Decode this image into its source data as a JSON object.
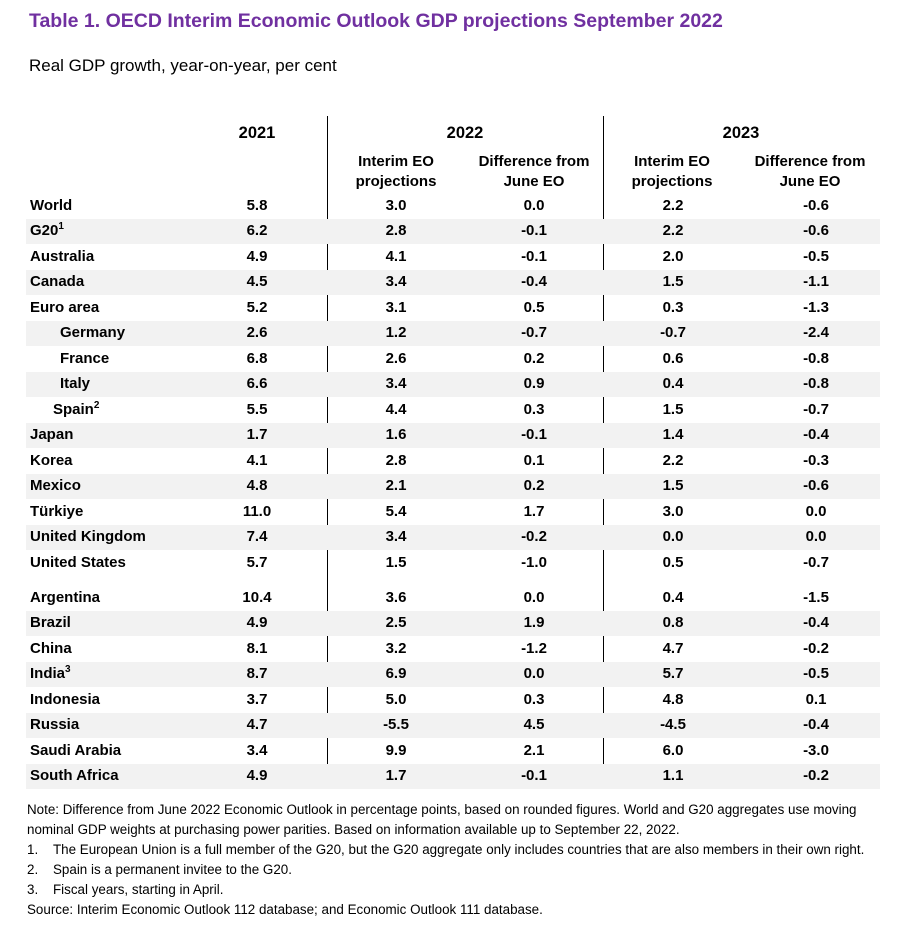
{
  "title": "Table 1. OECD Interim Economic Outlook GDP projections September 2022",
  "subtitle": "Real GDP growth, year-on-year, per cent",
  "header": {
    "y2021": "2021",
    "y2022": "2022",
    "y2023": "2023",
    "interim_line1": "Interim EO",
    "interim_line2": "projections",
    "diff_line1": "Difference from",
    "diff_line2": "June EO"
  },
  "rows": [
    {
      "name": "World",
      "sup": "",
      "v": [
        "5.8",
        "3.0",
        "0.0",
        "2.2",
        "-0.6"
      ]
    },
    {
      "name": "G20",
      "sup": "1",
      "v": [
        "6.2",
        "2.8",
        "-0.1",
        "2.2",
        "-0.6"
      ]
    },
    {
      "name": "Australia",
      "sup": "",
      "v": [
        "4.9",
        "4.1",
        "-0.1",
        "2.0",
        "-0.5"
      ]
    },
    {
      "name": "Canada",
      "sup": "",
      "v": [
        "4.5",
        "3.4",
        "-0.4",
        "1.5",
        "-1.1"
      ]
    },
    {
      "name": "Euro area",
      "sup": "",
      "v": [
        "5.2",
        "3.1",
        "0.5",
        "0.3",
        "-1.3"
      ]
    },
    {
      "name": "Germany",
      "sup": "",
      "v": [
        "2.6",
        "1.2",
        "-0.7",
        "-0.7",
        "-2.4"
      ]
    },
    {
      "name": "France",
      "sup": "",
      "v": [
        "6.8",
        "2.6",
        "0.2",
        "0.6",
        "-0.8"
      ]
    },
    {
      "name": "Italy",
      "sup": "",
      "v": [
        "6.6",
        "3.4",
        "0.9",
        "0.4",
        "-0.8"
      ]
    },
    {
      "name": "Spain",
      "sup": "2",
      "v": [
        "5.5",
        "4.4",
        "0.3",
        "1.5",
        "-0.7"
      ]
    },
    {
      "name": "Japan",
      "sup": "",
      "v": [
        "1.7",
        "1.6",
        "-0.1",
        "1.4",
        "-0.4"
      ]
    },
    {
      "name": "Korea",
      "sup": "",
      "v": [
        "4.1",
        "2.8",
        "0.1",
        "2.2",
        "-0.3"
      ]
    },
    {
      "name": "Mexico",
      "sup": "",
      "v": [
        "4.8",
        "2.1",
        "0.2",
        "1.5",
        "-0.6"
      ]
    },
    {
      "name": "Türkiye",
      "sup": "",
      "v": [
        "11.0",
        "5.4",
        "1.7",
        "3.0",
        "0.0"
      ]
    },
    {
      "name": "United Kingdom",
      "sup": "",
      "v": [
        "7.4",
        "3.4",
        "-0.2",
        "0.0",
        "0.0"
      ]
    },
    {
      "name": "United States",
      "sup": "",
      "v": [
        "5.7",
        "1.5",
        "-1.0",
        "0.5",
        "-0.7"
      ]
    },
    {
      "name": "Argentina",
      "sup": "",
      "v": [
        "10.4",
        "3.6",
        "0.0",
        "0.4",
        "-1.5"
      ]
    },
    {
      "name": "Brazil",
      "sup": "",
      "v": [
        "4.9",
        "2.5",
        "1.9",
        "0.8",
        "-0.4"
      ]
    },
    {
      "name": "China",
      "sup": "",
      "v": [
        "8.1",
        "3.2",
        "-1.2",
        "4.7",
        "-0.2"
      ]
    },
    {
      "name": "India",
      "sup": "3",
      "v": [
        "8.7",
        "6.9",
        "0.0",
        "5.7",
        "-0.5"
      ]
    },
    {
      "name": "Indonesia",
      "sup": "",
      "v": [
        "3.7",
        "5.0",
        "0.3",
        "4.8",
        "0.1"
      ]
    },
    {
      "name": "Russia",
      "sup": "",
      "v": [
        "4.7",
        "-5.5",
        "4.5",
        "-4.5",
        "-0.4"
      ]
    },
    {
      "name": "Saudi Arabia",
      "sup": "",
      "v": [
        "3.4",
        "9.9",
        "2.1",
        "6.0",
        "-3.0"
      ]
    },
    {
      "name": "South Africa",
      "sup": "",
      "v": [
        "4.9",
        "1.7",
        "-0.1",
        "1.1",
        "-0.2"
      ]
    }
  ],
  "notes": {
    "note_line1": "Note: Difference from June 2022 Economic Outlook in percentage points, based on rounded figures. World and G20 aggregates use moving",
    "note_line2": "nominal GDP weights at purchasing power parities. Based on information available up to September 22, 2022.",
    "fn1_num": "1.",
    "fn1": "The European Union is a full member of the G20, but the G20 aggregate only includes countries that are also members in their own right.",
    "fn2_num": "2.",
    "fn2": "Spain is a permanent invitee to the G20.",
    "fn3_num": "3.",
    "fn3": "Fiscal years, starting in April.",
    "source": "Source: Interim Economic Outlook 112 database; and Economic Outlook 111 database."
  }
}
